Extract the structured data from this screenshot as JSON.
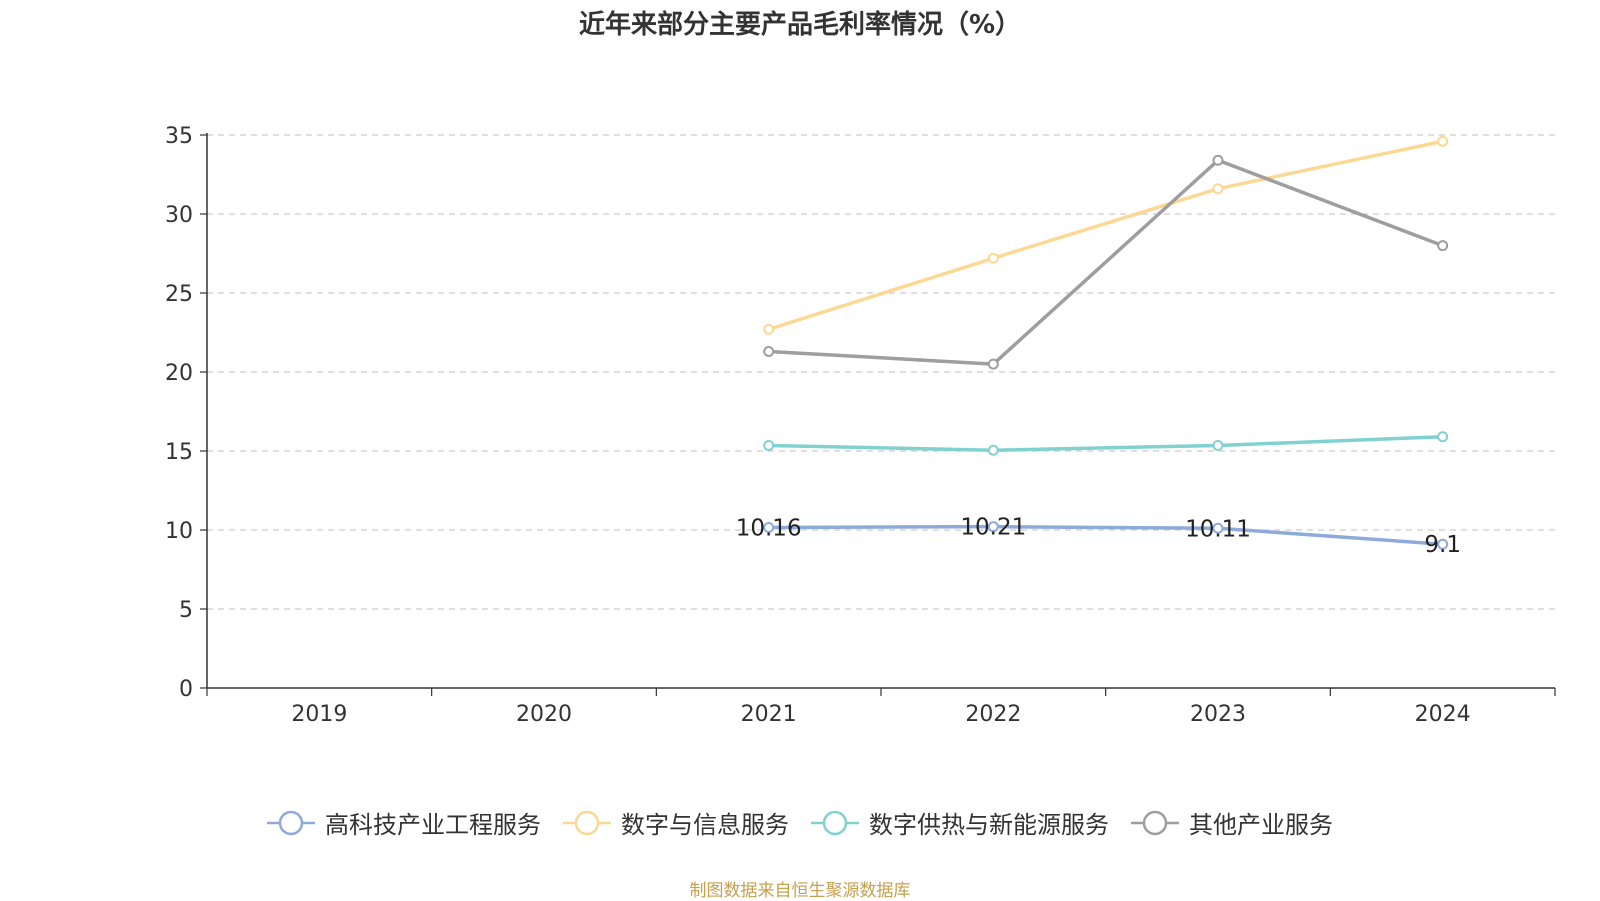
{
  "header": {
    "title": "近年来部分主要产品毛利率情况（%）"
  },
  "footer": {
    "source": "制图数据来自恒生聚源数据库"
  },
  "chart_data": {
    "type": "line",
    "title": "近年来部分主要产品毛利率情况（%）",
    "xlabel": "",
    "ylabel": "",
    "categories": [
      "2019",
      "2020",
      "2021",
      "2022",
      "2023",
      "2024"
    ],
    "ylim": [
      0,
      35
    ],
    "yticks": [
      0,
      5,
      10,
      15,
      20,
      25,
      30,
      35
    ],
    "grid": "horizontal-dashed",
    "legend_position": "bottom",
    "series": [
      {
        "name": "高科技产业工程服务",
        "color": "#8eaadb",
        "values": [
          null,
          null,
          10.16,
          10.21,
          10.11,
          9.1
        ],
        "labels": [
          "",
          "",
          "10.16",
          "10.21",
          "10.11",
          "9.1"
        ]
      },
      {
        "name": "数字与信息服务",
        "color": "#fbd994",
        "values": [
          null,
          null,
          22.7,
          27.2,
          31.6,
          34.6
        ]
      },
      {
        "name": "数字供热与新能源服务",
        "color": "#82d1d1",
        "values": [
          null,
          null,
          15.35,
          15.05,
          15.35,
          15.9
        ]
      },
      {
        "name": "其他产业服务",
        "color": "#9e9e9e",
        "values": [
          null,
          null,
          21.3,
          20.5,
          33.4,
          28.0
        ]
      }
    ]
  }
}
